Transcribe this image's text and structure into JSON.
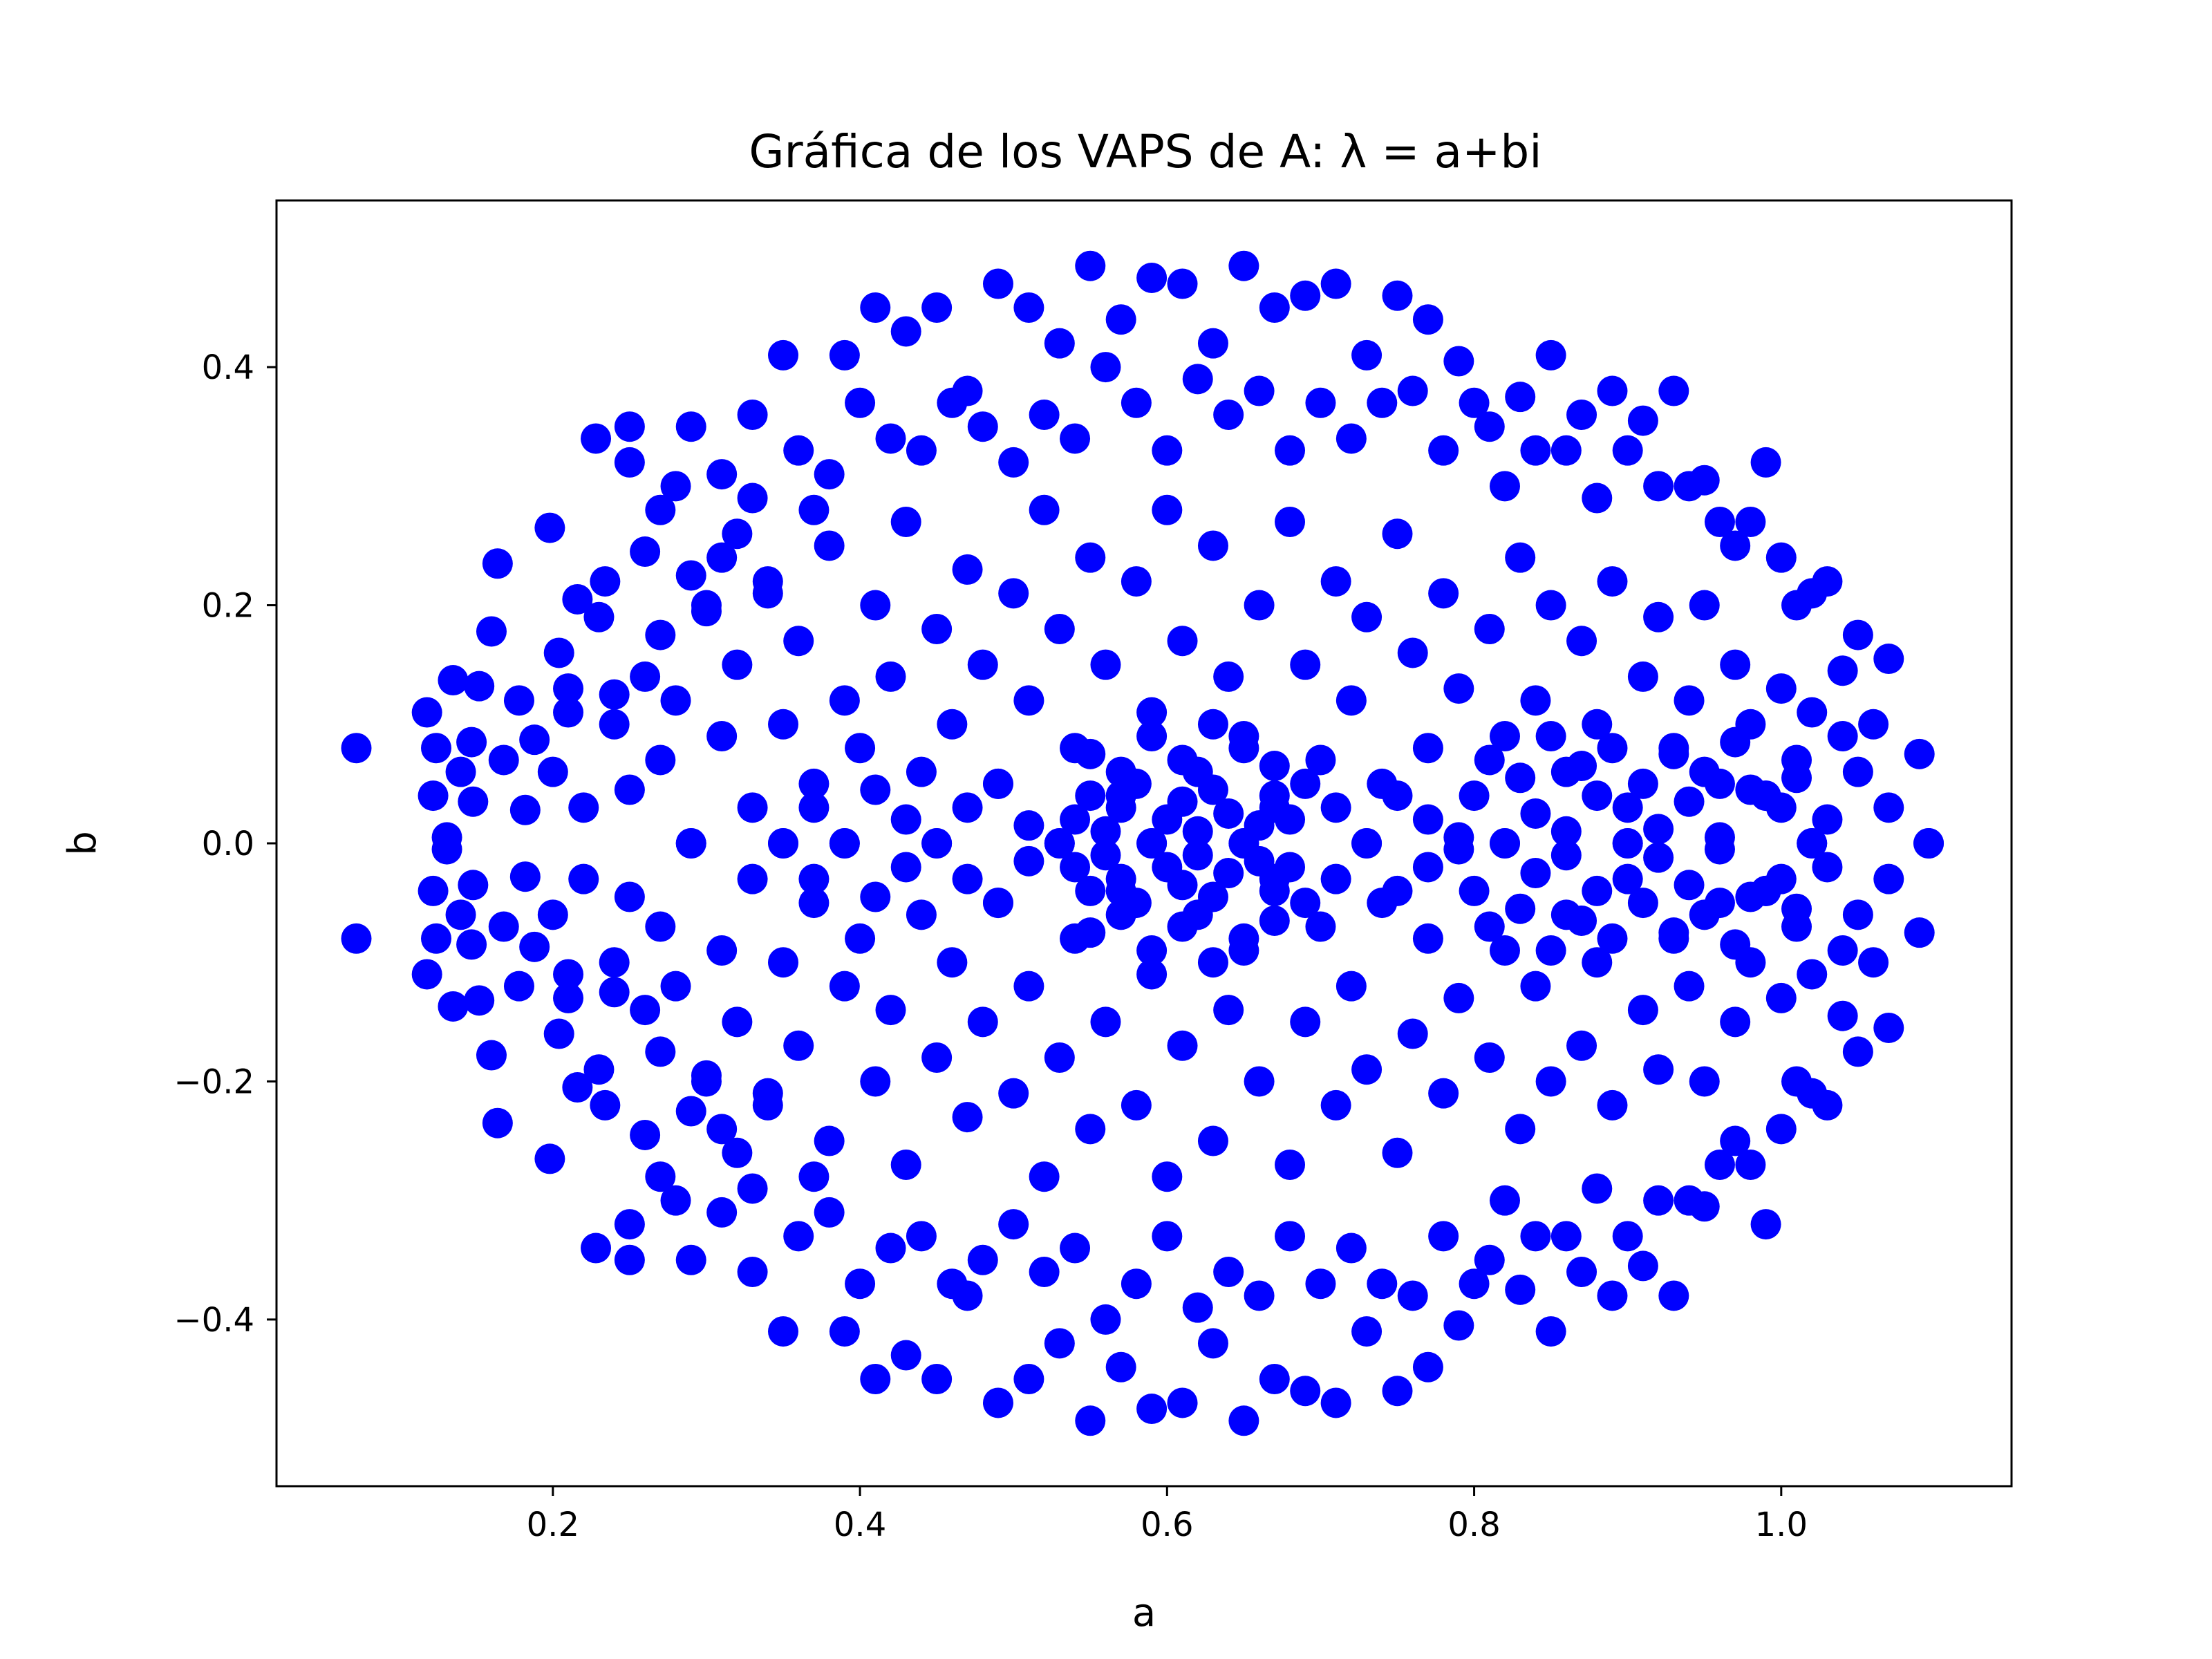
{
  "chart_data": {
    "type": "scatter",
    "title": "Gráfica de los VAPS de A: λ = a+bi",
    "xlabel": "a",
    "ylabel": "b",
    "xlim": [
      0.02,
      1.15
    ],
    "ylim": [
      -0.54,
      0.54
    ],
    "xticks": [
      0.2,
      0.4,
      0.6,
      0.8,
      1.0
    ],
    "xtick_labels": [
      "0.2",
      "0.4",
      "0.6",
      "0.8",
      "1.0"
    ],
    "yticks": [
      -0.4,
      -0.2,
      0.0,
      0.2,
      0.4
    ],
    "ytick_labels": [
      "−0.4",
      "−0.2",
      "0.0",
      "0.2",
      "0.4"
    ],
    "grid": false,
    "legend": "none",
    "marker_color": "#0000ff",
    "marker": "circle",
    "series": [
      {
        "x": [
          0.072,
          0.072,
          0.118,
          0.118,
          0.122,
          0.122,
          0.124,
          0.124,
          0.131,
          0.131,
          0.135,
          0.135,
          0.14,
          0.14,
          0.147,
          0.147,
          0.148,
          0.148,
          0.152,
          0.152,
          0.16,
          0.16,
          0.164,
          0.164,
          0.168,
          0.168,
          0.178,
          0.178,
          0.182,
          0.182,
          0.188,
          0.188,
          0.198,
          0.198,
          0.204,
          0.204,
          0.21,
          0.21,
          0.216,
          0.216,
          0.228,
          0.228,
          0.234,
          0.234,
          0.24,
          0.24,
          0.25,
          0.25,
          0.27,
          0.27,
          0.29,
          0.29,
          0.31,
          0.31,
          0.33,
          0.33,
          0.35,
          0.35,
          0.37,
          0.37,
          0.39,
          0.39,
          0.41,
          0.41,
          0.43,
          0.43,
          0.45,
          0.45,
          0.47,
          0.47,
          0.49,
          0.49,
          0.51,
          0.51,
          0.53,
          0.53,
          0.55,
          0.55,
          0.57,
          0.57,
          0.59,
          0.59,
          0.61,
          0.61,
          0.63,
          0.63,
          0.65,
          0.65,
          0.67,
          0.67,
          0.69,
          0.69,
          0.71,
          0.71,
          0.73,
          0.73,
          0.75,
          0.75,
          0.77,
          0.77,
          0.79,
          0.79,
          0.81,
          0.81,
          0.83,
          0.83,
          0.85,
          0.85,
          0.87,
          0.87,
          0.89,
          0.89,
          0.91,
          0.91,
          0.93,
          0.93,
          0.95,
          0.95,
          0.97,
          0.97,
          0.99,
          0.99,
          1.01,
          1.01,
          1.03,
          1.03,
          1.05,
          1.05,
          1.07,
          1.07,
          1.09,
          1.09,
          1.096,
          1.096
        ],
        "y": [
          0.08,
          -0.08,
          0.11,
          -0.11,
          0.04,
          -0.04,
          0.08,
          -0.08,
          0.005,
          -0.005,
          0.137,
          -0.137,
          0.06,
          -0.06,
          0.085,
          -0.085,
          0.035,
          -0.035,
          0.132,
          -0.132,
          0.178,
          -0.178,
          0.235,
          -0.235,
          0.07,
          -0.07,
          0.12,
          -0.12,
          0.028,
          -0.028,
          0.087,
          -0.087,
          0.265,
          -0.265,
          0.16,
          -0.16,
          0.11,
          -0.11,
          0.205,
          -0.205,
          0.34,
          -0.34,
          0.22,
          -0.22,
          0.125,
          -0.125,
          0.35,
          -0.35,
          0.28,
          -0.28,
          0.35,
          -0.35,
          0.24,
          -0.24,
          0.36,
          -0.36,
          0.41,
          -0.41,
          0.28,
          -0.28,
          0.41,
          -0.41,
          0.45,
          -0.45,
          0.43,
          -0.43,
          0.45,
          -0.45,
          0.38,
          -0.38,
          0.47,
          -0.47,
          0.45,
          -0.45,
          0.42,
          -0.42,
          0.485,
          -0.485,
          0.44,
          -0.44,
          0.475,
          -0.475,
          0.47,
          -0.47,
          0.42,
          -0.42,
          0.485,
          -0.485,
          0.45,
          -0.45,
          0.46,
          -0.46,
          0.47,
          -0.47,
          0.41,
          -0.41,
          0.46,
          -0.46,
          0.44,
          -0.44,
          0.405,
          -0.405,
          0.35,
          -0.35,
          0.375,
          -0.375,
          0.41,
          -0.41,
          0.36,
          -0.36,
          0.38,
          -0.38,
          0.355,
          -0.355,
          0.38,
          -0.38,
          0.305,
          -0.305,
          0.25,
          -0.25,
          0.32,
          -0.32,
          0.2,
          -0.2,
          0.22,
          -0.22,
          0.175,
          -0.175,
          0.155,
          -0.155,
          0.075,
          -0.075,
          0.0,
          0.0
        ]
      },
      {
        "x": [
          0.25,
          0.26,
          0.27,
          0.28,
          0.29,
          0.3,
          0.31,
          0.32,
          0.33,
          0.34,
          0.36,
          0.38,
          0.4,
          0.42,
          0.44,
          0.46,
          0.48,
          0.5,
          0.52,
          0.54,
          0.56,
          0.58,
          0.6,
          0.62,
          0.64,
          0.66,
          0.68,
          0.7,
          0.72,
          0.74,
          0.76,
          0.78,
          0.8,
          0.82,
          0.84,
          0.86,
          0.88,
          0.9,
          0.92,
          0.94,
          0.96,
          0.98,
          1.0,
          1.02,
          1.04,
          0.25,
          0.26,
          0.27,
          0.28,
          0.29,
          0.3,
          0.31,
          0.32,
          0.33,
          0.34,
          0.36,
          0.38,
          0.4,
          0.42,
          0.44,
          0.46,
          0.48,
          0.5,
          0.52,
          0.54,
          0.56,
          0.58,
          0.6,
          0.62,
          0.64,
          0.66,
          0.68,
          0.7,
          0.72,
          0.74,
          0.76,
          0.78,
          0.8,
          0.82,
          0.84,
          0.86,
          0.88,
          0.9,
          0.92,
          0.94,
          0.96,
          0.98,
          1.0,
          1.02,
          1.04
        ],
        "y": [
          0.32,
          0.245,
          0.175,
          0.3,
          0.225,
          0.195,
          0.31,
          0.26,
          0.29,
          0.21,
          0.33,
          0.31,
          0.37,
          0.34,
          0.33,
          0.37,
          0.35,
          0.32,
          0.36,
          0.34,
          0.4,
          0.37,
          0.33,
          0.39,
          0.36,
          0.38,
          0.33,
          0.37,
          0.34,
          0.37,
          0.38,
          0.33,
          0.37,
          0.3,
          0.33,
          0.33,
          0.29,
          0.33,
          0.3,
          0.3,
          0.27,
          0.27,
          0.24,
          0.21,
          0.145,
          -0.32,
          -0.245,
          -0.175,
          -0.3,
          -0.225,
          -0.195,
          -0.31,
          -0.26,
          -0.29,
          -0.21,
          -0.33,
          -0.31,
          -0.37,
          -0.34,
          -0.33,
          -0.37,
          -0.35,
          -0.32,
          -0.36,
          -0.34,
          -0.4,
          -0.37,
          -0.33,
          -0.39,
          -0.36,
          -0.38,
          -0.33,
          -0.37,
          -0.34,
          -0.37,
          -0.38,
          -0.33,
          -0.37,
          -0.3,
          -0.33,
          -0.33,
          -0.29,
          -0.33,
          -0.3,
          -0.3,
          -0.27,
          -0.27,
          -0.24,
          -0.21,
          -0.145
        ]
      },
      {
        "x": [
          0.2,
          0.21,
          0.22,
          0.23,
          0.24,
          0.25,
          0.26,
          0.27,
          0.28,
          0.29,
          0.3,
          0.31,
          0.32,
          0.33,
          0.34,
          0.35,
          0.36,
          0.37,
          0.38,
          0.39,
          0.4,
          0.41,
          0.42,
          0.43,
          0.44,
          0.45,
          0.46,
          0.47,
          0.48,
          0.49,
          0.5,
          0.51,
          0.52,
          0.53,
          0.54,
          0.55,
          0.56,
          0.57,
          0.58,
          0.59,
          0.6,
          0.61,
          0.62,
          0.63,
          0.64,
          0.65,
          0.66,
          0.67,
          0.68,
          0.69,
          0.7,
          0.71,
          0.72,
          0.73,
          0.74,
          0.75,
          0.76,
          0.77,
          0.78,
          0.79,
          0.8,
          0.81,
          0.82,
          0.83,
          0.84,
          0.85,
          0.86,
          0.87,
          0.88,
          0.89,
          0.9,
          0.91,
          0.92,
          0.93,
          0.94,
          0.95,
          0.96,
          0.97,
          0.98,
          0.99,
          1.0,
          1.01,
          1.02,
          1.03,
          1.04,
          1.05,
          1.06,
          1.07
        ],
        "y": [
          0.06,
          0.13,
          0.03,
          0.19,
          0.1,
          0.045,
          0.14,
          0.07,
          0.12,
          0.0,
          0.2,
          0.09,
          0.15,
          0.03,
          0.22,
          0.1,
          0.17,
          0.05,
          0.25,
          0.12,
          0.08,
          0.2,
          0.14,
          0.27,
          0.06,
          0.18,
          0.1,
          0.23,
          0.15,
          0.05,
          0.21,
          0.12,
          0.28,
          0.18,
          0.08,
          0.24,
          0.15,
          0.04,
          0.22,
          0.11,
          0.28,
          0.17,
          0.06,
          0.25,
          0.14,
          0.09,
          0.2,
          0.03,
          0.27,
          0.15,
          0.07,
          0.22,
          0.12,
          0.19,
          0.05,
          0.26,
          0.16,
          0.08,
          0.21,
          0.13,
          0.04,
          0.18,
          0.09,
          0.24,
          0.12,
          0.2,
          0.06,
          0.17,
          0.1,
          0.22,
          0.03,
          0.14,
          0.19,
          0.08,
          0.12,
          0.2,
          0.05,
          0.15,
          0.1,
          0.04,
          0.13,
          0.07,
          0.11,
          0.02,
          0.09,
          0.06,
          0.1,
          0.03
        ]
      },
      {
        "x": [
          0.2,
          0.21,
          0.22,
          0.23,
          0.24,
          0.25,
          0.26,
          0.27,
          0.28,
          0.29,
          0.3,
          0.31,
          0.32,
          0.33,
          0.34,
          0.35,
          0.36,
          0.37,
          0.38,
          0.39,
          0.4,
          0.41,
          0.42,
          0.43,
          0.44,
          0.45,
          0.46,
          0.47,
          0.48,
          0.49,
          0.5,
          0.51,
          0.52,
          0.53,
          0.54,
          0.55,
          0.56,
          0.57,
          0.58,
          0.59,
          0.6,
          0.61,
          0.62,
          0.63,
          0.64,
          0.65,
          0.66,
          0.67,
          0.68,
          0.69,
          0.7,
          0.71,
          0.72,
          0.73,
          0.74,
          0.75,
          0.76,
          0.77,
          0.78,
          0.79,
          0.8,
          0.81,
          0.82,
          0.83,
          0.84,
          0.85,
          0.86,
          0.87,
          0.88,
          0.89,
          0.9,
          0.91,
          0.92,
          0.93,
          0.94,
          0.95,
          0.96,
          0.97,
          0.98,
          0.99,
          1.0,
          1.01,
          1.02,
          1.03,
          1.04,
          1.05,
          1.06,
          1.07
        ],
        "y": [
          -0.06,
          -0.13,
          -0.03,
          -0.19,
          -0.1,
          -0.045,
          -0.14,
          -0.07,
          -0.12,
          -0.0,
          -0.2,
          -0.09,
          -0.15,
          -0.03,
          -0.22,
          -0.1,
          -0.17,
          -0.05,
          -0.25,
          -0.12,
          -0.08,
          -0.2,
          -0.14,
          -0.27,
          -0.06,
          -0.18,
          -0.1,
          -0.23,
          -0.15,
          -0.05,
          -0.21,
          -0.12,
          -0.28,
          -0.18,
          -0.08,
          -0.24,
          -0.15,
          -0.04,
          -0.22,
          -0.11,
          -0.28,
          -0.17,
          -0.06,
          -0.25,
          -0.14,
          -0.09,
          -0.2,
          -0.03,
          -0.27,
          -0.15,
          -0.07,
          -0.22,
          -0.12,
          -0.19,
          -0.05,
          -0.26,
          -0.16,
          -0.08,
          -0.21,
          -0.13,
          -0.04,
          -0.18,
          -0.09,
          -0.24,
          -0.12,
          -0.2,
          -0.06,
          -0.17,
          -0.1,
          -0.22,
          -0.03,
          -0.14,
          -0.19,
          -0.08,
          -0.12,
          -0.2,
          -0.05,
          -0.15,
          -0.1,
          -0.04,
          -0.13,
          -0.07,
          -0.11,
          -0.02,
          -0.09,
          -0.06,
          -0.1,
          -0.03
        ]
      },
      {
        "x": [
          0.53,
          0.54,
          0.55,
          0.56,
          0.57,
          0.58,
          0.59,
          0.6,
          0.61,
          0.62,
          0.63,
          0.64,
          0.65,
          0.66,
          0.67,
          0.68,
          0.55,
          0.57,
          0.59,
          0.61,
          0.63,
          0.65,
          0.67,
          0.69,
          0.71,
          0.73,
          0.75,
          0.77,
          0.79,
          0.45,
          0.47,
          0.49,
          0.51,
          0.39,
          0.41,
          0.43,
          0.35,
          0.37,
          0.53,
          0.54,
          0.55,
          0.56,
          0.57,
          0.58,
          0.59,
          0.6,
          0.61,
          0.62,
          0.63,
          0.64,
          0.65,
          0.66,
          0.67,
          0.68,
          0.55,
          0.57,
          0.59,
          0.61,
          0.63,
          0.65,
          0.67,
          0.69,
          0.71,
          0.73,
          0.75,
          0.77,
          0.79,
          0.45,
          0.47,
          0.49,
          0.51,
          0.39,
          0.41,
          0.43,
          0.35,
          0.37
        ],
        "y": [
          0.0,
          0.02,
          0.04,
          0.01,
          0.03,
          0.05,
          0.0,
          0.02,
          0.035,
          0.01,
          0.045,
          0.025,
          0.0,
          0.015,
          0.04,
          0.02,
          0.075,
          0.06,
          0.09,
          0.07,
          0.1,
          0.08,
          0.065,
          0.05,
          0.03,
          0.0,
          0.04,
          0.02,
          0.005,
          0.0,
          0.03,
          0.05,
          0.015,
          0.0,
          0.045,
          0.02,
          0.0,
          0.03,
          -0.0,
          -0.02,
          -0.04,
          -0.01,
          -0.03,
          -0.05,
          -0.0,
          -0.02,
          -0.035,
          -0.01,
          -0.045,
          -0.025,
          -0.0,
          -0.015,
          -0.04,
          -0.02,
          -0.075,
          -0.06,
          -0.09,
          -0.07,
          -0.1,
          -0.08,
          -0.065,
          -0.05,
          -0.03,
          -0.0,
          -0.04,
          -0.02,
          -0.005,
          -0.0,
          -0.03,
          -0.05,
          -0.015,
          -0.0,
          -0.045,
          -0.02,
          -0.0,
          -0.03
        ]
      },
      {
        "x": [
          0.82,
          0.84,
          0.86,
          0.88,
          0.9,
          0.92,
          0.94,
          0.96,
          0.98,
          1.0,
          1.02,
          0.81,
          0.83,
          0.85,
          0.87,
          0.89,
          0.91,
          0.93,
          0.95,
          0.97,
          0.99,
          1.01,
          0.82,
          0.84,
          0.86,
          0.88,
          0.9,
          0.92,
          0.94,
          0.96,
          0.98,
          1.0,
          1.02,
          0.81,
          0.83,
          0.85,
          0.87,
          0.89,
          0.91,
          0.93,
          0.95,
          0.97,
          0.99,
          1.01
        ],
        "y": [
          0.0,
          0.025,
          0.01,
          0.04,
          0.0,
          0.012,
          0.035,
          0.005,
          0.045,
          0.03,
          0.0,
          0.07,
          0.055,
          0.09,
          0.065,
          0.08,
          0.05,
          0.075,
          0.06,
          0.085,
          0.04,
          0.055,
          -0.0,
          -0.025,
          -0.01,
          -0.04,
          -0.0,
          -0.012,
          -0.035,
          -0.005,
          -0.045,
          -0.03,
          -0.0,
          -0.07,
          -0.055,
          -0.09,
          -0.065,
          -0.08,
          -0.05,
          -0.075,
          -0.06,
          -0.085,
          -0.04,
          -0.055
        ]
      }
    ]
  }
}
